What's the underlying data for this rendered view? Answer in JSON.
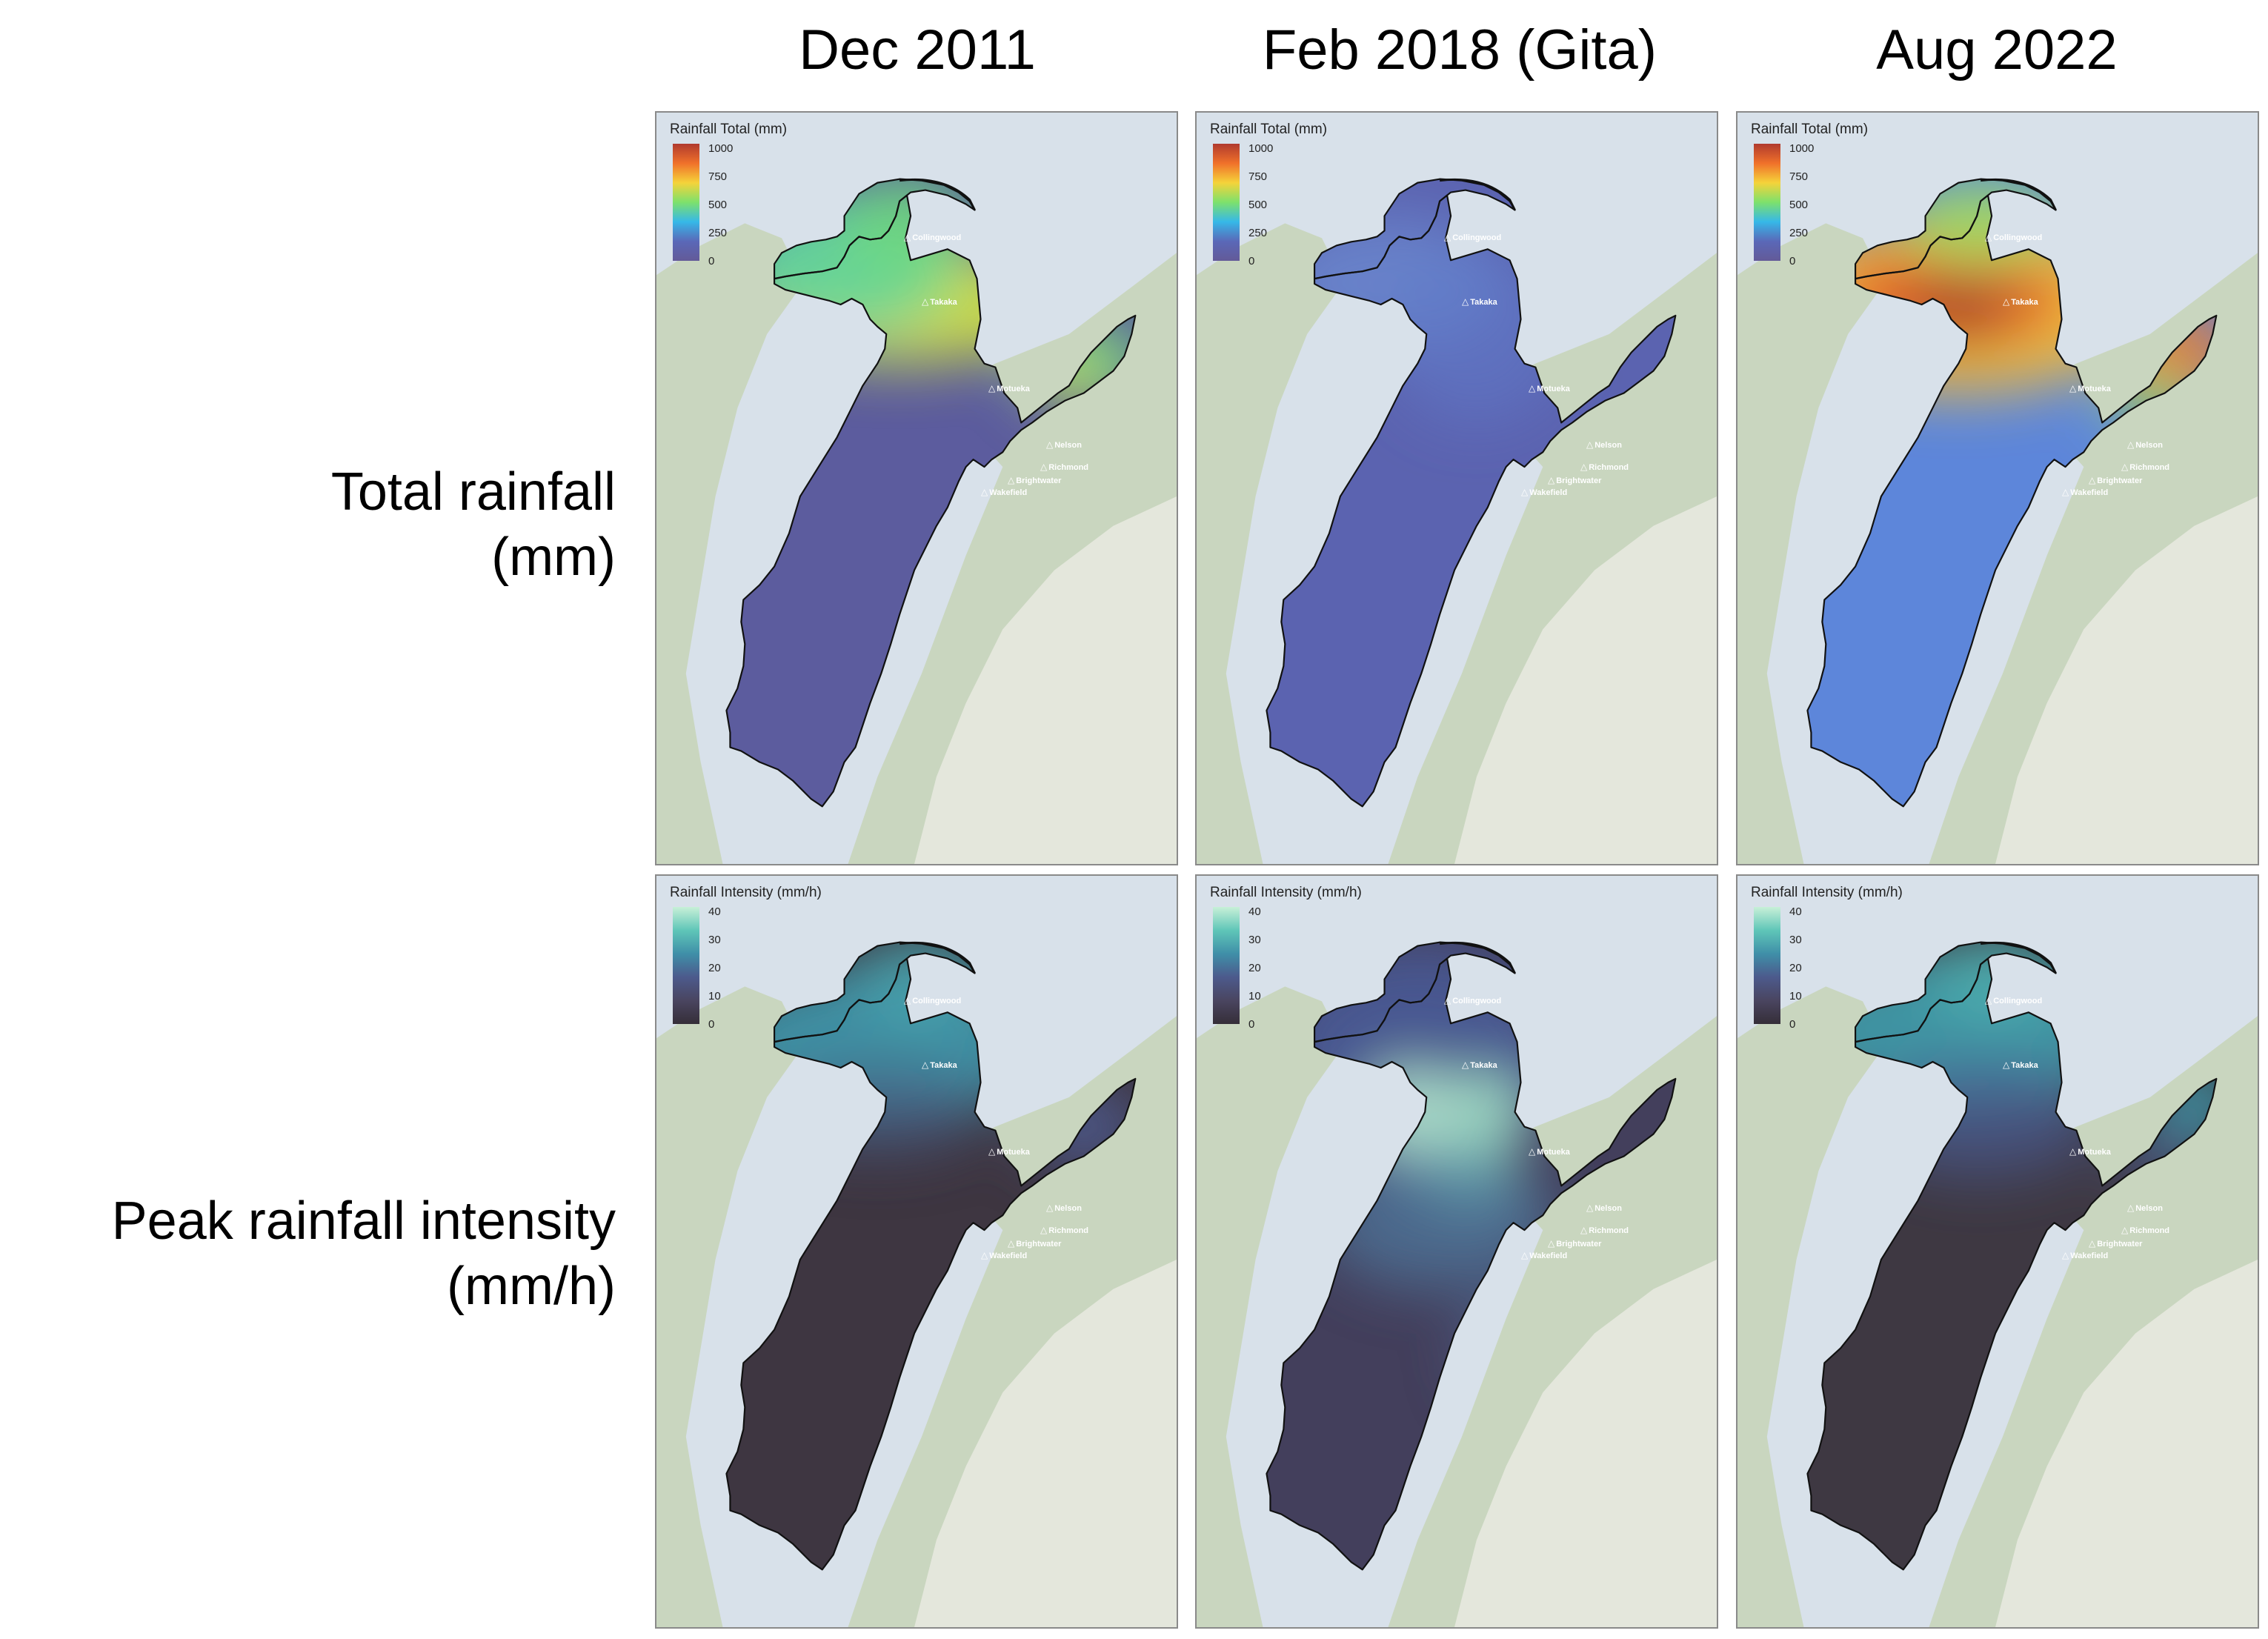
{
  "columns": [
    {
      "title": "Dec 2011"
    },
    {
      "title": "Feb 2018 (Gita)"
    },
    {
      "title": "Aug 2022"
    }
  ],
  "rows": [
    {
      "label_line1": "Total rainfall",
      "label_line2": "(mm)",
      "legend_title": "Rainfall Total (mm)",
      "ticks": [
        "1000",
        "750",
        "500",
        "250",
        "0"
      ],
      "colors": [
        "#b03a2e",
        "#f0712a",
        "#f5d33a",
        "#7de16c",
        "#36b8e8",
        "#5a68b8",
        "#635a98"
      ]
    },
    {
      "label_line1": "Peak rainfall intensity",
      "label_line2": "(mm/h)",
      "legend_title": "Rainfall Intensity (mm/h)",
      "ticks": [
        "40",
        "30",
        "20",
        "10",
        "0"
      ],
      "colors": [
        "#c8f0d8",
        "#5fc6b8",
        "#3f8fa8",
        "#4c5a8c",
        "#4a4560",
        "#352e38"
      ]
    }
  ],
  "towns": {
    "collingwood": "Collingwood",
    "takaka": "Takaka",
    "motueka": "Motueka",
    "nelson": "Nelson",
    "richmond": "Richmond",
    "brightwater": "Brightwater",
    "wakefield": "Wakefield"
  },
  "panels": [
    {
      "row": 0,
      "col": 0,
      "scheme": "total",
      "pattern": "dec2011_total"
    },
    {
      "row": 0,
      "col": 1,
      "scheme": "total",
      "pattern": "feb2018_total"
    },
    {
      "row": 0,
      "col": 2,
      "scheme": "total",
      "pattern": "aug2022_total"
    },
    {
      "row": 1,
      "col": 0,
      "scheme": "intensity",
      "pattern": "dec2011_intensity"
    },
    {
      "row": 1,
      "col": 1,
      "scheme": "intensity",
      "pattern": "feb2018_intensity"
    },
    {
      "row": 1,
      "col": 2,
      "scheme": "intensity",
      "pattern": "aug2022_intensity"
    }
  ]
}
